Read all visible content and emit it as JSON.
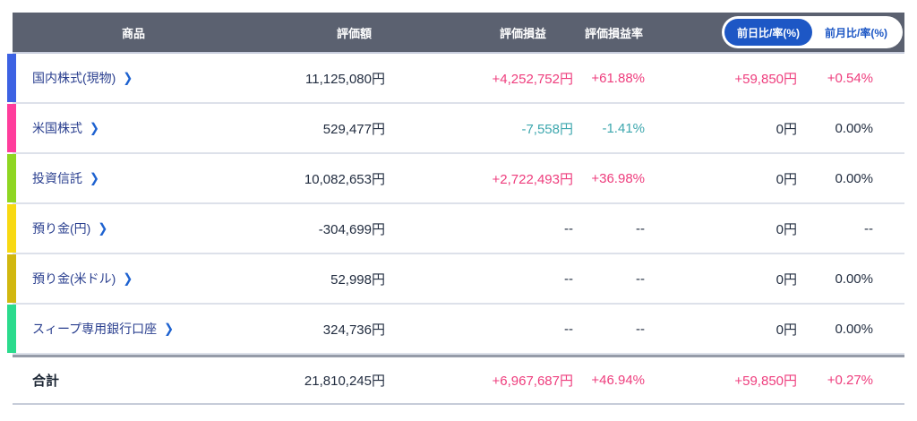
{
  "table": {
    "columns": {
      "product": "商品",
      "valuation": "評価額",
      "pl": "評価損益",
      "pl_rate": "評価損益率"
    },
    "toggle": {
      "daily": "前日比/率(%)",
      "monthly": "前月比/率(%)"
    },
    "icons": {
      "chevron_right": "❯"
    },
    "colors": {
      "header_bg": "#5b6170",
      "toggle_active_bg": "#1d57c5",
      "positive_text": "#ee3d7d",
      "negative_text": "#3da7ae",
      "neutral_text": "#222d40",
      "product_label": "#2a3f8f"
    },
    "rows": [
      {
        "label": "国内株式(現物)",
        "accent_color": "#3d62e3",
        "cells": [
          {
            "text": "11,125,080円",
            "state": "flat"
          },
          {
            "text": "+4,252,752円",
            "state": "up"
          },
          {
            "text": "+61.88%",
            "state": "up"
          },
          {
            "text": "+59,850円",
            "state": "up"
          },
          {
            "text": "+0.54%",
            "state": "up"
          }
        ]
      },
      {
        "label": "米国株式",
        "accent_color": "#ff3d9c",
        "cells": [
          {
            "text": "529,477円",
            "state": "flat"
          },
          {
            "text": "-7,558円",
            "state": "down"
          },
          {
            "text": "-1.41%",
            "state": "down"
          },
          {
            "text": "0円",
            "state": "flat"
          },
          {
            "text": "0.00%",
            "state": "flat"
          }
        ]
      },
      {
        "label": "投資信託",
        "accent_color": "#8fd622",
        "cells": [
          {
            "text": "10,082,653円",
            "state": "flat"
          },
          {
            "text": "+2,722,493円",
            "state": "up"
          },
          {
            "text": "+36.98%",
            "state": "up"
          },
          {
            "text": "0円",
            "state": "flat"
          },
          {
            "text": "0.00%",
            "state": "flat"
          }
        ]
      },
      {
        "label": "預り金(円)",
        "accent_color": "#f8d912",
        "cells": [
          {
            "text": "-304,699円",
            "state": "flat"
          },
          {
            "text": "--",
            "state": "flat"
          },
          {
            "text": "--",
            "state": "flat"
          },
          {
            "text": "0円",
            "state": "flat"
          },
          {
            "text": "--",
            "state": "flat"
          }
        ]
      },
      {
        "label": "預り金(米ドル)",
        "accent_color": "#d1b70f",
        "cells": [
          {
            "text": "52,998円",
            "state": "flat"
          },
          {
            "text": "--",
            "state": "flat"
          },
          {
            "text": "--",
            "state": "flat"
          },
          {
            "text": "0円",
            "state": "flat"
          },
          {
            "text": "0.00%",
            "state": "flat"
          }
        ]
      },
      {
        "label": "スィープ専用銀行口座",
        "accent_color": "#2bdb8d",
        "cells": [
          {
            "text": "324,736円",
            "state": "flat"
          },
          {
            "text": "--",
            "state": "flat"
          },
          {
            "text": "--",
            "state": "flat"
          },
          {
            "text": "0円",
            "state": "flat"
          },
          {
            "text": "0.00%",
            "state": "flat"
          }
        ]
      }
    ],
    "total": {
      "label": "合計",
      "cells": [
        {
          "text": "21,810,245円",
          "state": "flat"
        },
        {
          "text": "+6,967,687円",
          "state": "up"
        },
        {
          "text": "+46.94%",
          "state": "up"
        },
        {
          "text": "+59,850円",
          "state": "up"
        },
        {
          "text": "+0.27%",
          "state": "up"
        }
      ]
    }
  }
}
